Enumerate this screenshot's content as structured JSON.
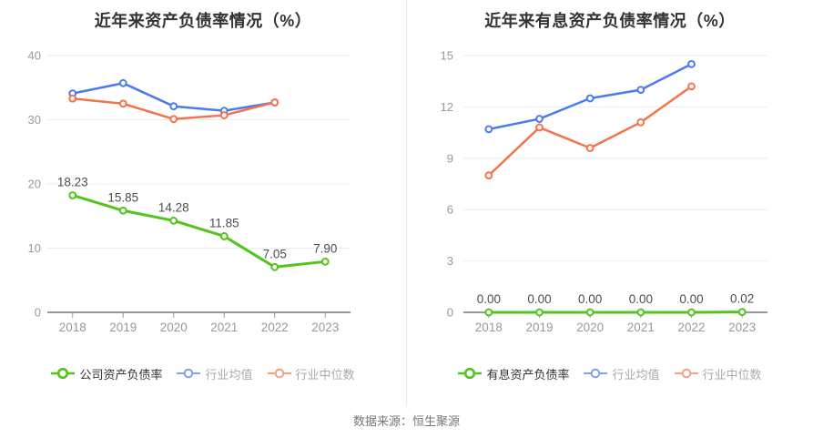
{
  "footer": {
    "source_text": "数据来源：恒生聚源"
  },
  "style": {
    "grid_color": "#e9edf4",
    "axis_color": "#999999",
    "tick_label_color": "#999999",
    "data_label_color": "#4d4d4d",
    "title_color": "#333333"
  },
  "chart_data": [
    {
      "type": "line",
      "title": "近年来资产负债率情况（%）",
      "categories": [
        "2018",
        "2019",
        "2020",
        "2021",
        "2022",
        "2023"
      ],
      "ylim": [
        0,
        40
      ],
      "yticks": [
        0,
        10,
        20,
        30,
        40
      ],
      "grid": true,
      "legend_position": "bottom",
      "series": [
        {
          "name": "公司资产负债率",
          "color": "#52c41a",
          "legend_color": "#52c41a",
          "values": [
            18.23,
            15.85,
            14.28,
            11.85,
            7.05,
            7.9
          ],
          "point_labels": [
            "18.23",
            "15.85",
            "14.28",
            "11.85",
            "7.05",
            "7.90"
          ]
        },
        {
          "name": "行业均值",
          "color": "#4a7bee",
          "legend_color": "#7fa3f5",
          "values": [
            34.1,
            35.7,
            32.1,
            31.4,
            32.7,
            null
          ]
        },
        {
          "name": "行业中位数",
          "color": "#f3744c",
          "legend_color": "#f7a184",
          "values": [
            33.3,
            32.5,
            30.1,
            30.7,
            32.7,
            null
          ]
        }
      ]
    },
    {
      "type": "line",
      "title": "近年来有息资产负债率情况（%）",
      "categories": [
        "2018",
        "2019",
        "2020",
        "2021",
        "2022",
        "2023"
      ],
      "ylim": [
        0,
        15
      ],
      "yticks": [
        0,
        3,
        6,
        9,
        12,
        15
      ],
      "grid": true,
      "legend_position": "bottom",
      "series": [
        {
          "name": "有息资产负债率",
          "color": "#52c41a",
          "legend_color": "#52c41a",
          "values": [
            0.0,
            0.0,
            0.0,
            0.0,
            0.0,
            0.02
          ],
          "point_labels": [
            "0.00",
            "0.00",
            "0.00",
            "0.00",
            "0.00",
            "0.02"
          ]
        },
        {
          "name": "行业均值",
          "color": "#4a7bee",
          "legend_color": "#7fa3f5",
          "values": [
            10.7,
            11.3,
            12.5,
            13.0,
            14.5,
            null
          ]
        },
        {
          "name": "行业中位数",
          "color": "#f3744c",
          "legend_color": "#f7a184",
          "values": [
            8.0,
            10.8,
            9.6,
            11.1,
            13.2,
            null
          ]
        }
      ]
    }
  ]
}
